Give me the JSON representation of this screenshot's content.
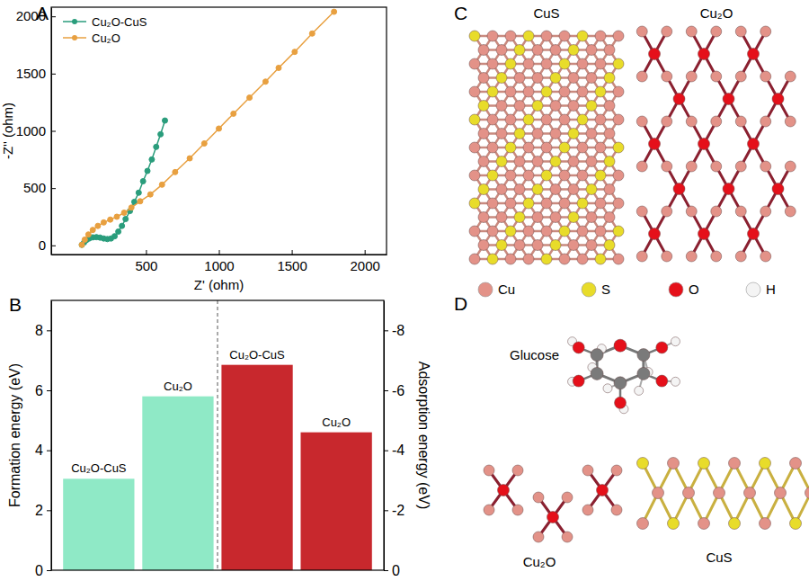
{
  "chart_data": [
    {
      "type": "line",
      "xlabel": "Z' (ohm)",
      "ylabel": "-Z'' (ohm)",
      "xlim": [
        -150,
        2150
      ],
      "ylim": [
        -80,
        2080
      ],
      "xticks": [
        500,
        1000,
        1500,
        2000
      ],
      "yticks": [
        0,
        500,
        1000,
        1500,
        2000
      ],
      "legend": "upper left",
      "marker": "circle",
      "series": [
        {
          "name": "Cu₂O-CuS",
          "color": "#2a9d7c",
          "x": [
            60,
            75,
            90,
            110,
            135,
            160,
            185,
            210,
            235,
            260,
            285,
            310,
            335,
            360,
            390,
            420,
            450,
            480,
            510,
            540,
            570,
            600,
            630
          ],
          "values": [
            5,
            25,
            45,
            60,
            70,
            72,
            68,
            60,
            55,
            60,
            80,
            120,
            170,
            230,
            300,
            380,
            460,
            560,
            650,
            750,
            860,
            970,
            1090
          ]
        },
        {
          "name": "Cu₂O",
          "color": "#e8a040",
          "x": [
            60,
            80,
            105,
            135,
            170,
            210,
            255,
            300,
            350,
            400,
            460,
            530,
            610,
            700,
            800,
            900,
            1000,
            1100,
            1210,
            1320,
            1410,
            1520,
            1640,
            1790
          ],
          "values": [
            5,
            50,
            95,
            135,
            170,
            200,
            225,
            250,
            285,
            330,
            385,
            445,
            530,
            640,
            760,
            890,
            1020,
            1150,
            1290,
            1430,
            1550,
            1690,
            1850,
            2040
          ]
        }
      ]
    },
    {
      "type": "bar",
      "categories": [
        "Cu₂O-CuS",
        "Cu₂O"
      ],
      "ylabel": "Formation energy (eV)",
      "y2label": "Adsorption energy (eV)",
      "ylim": [
        0,
        9
      ],
      "yticks": [
        0,
        2,
        4,
        6,
        8
      ],
      "y2lim": [
        0,
        -9
      ],
      "y2ticks": [
        0,
        -2,
        -4,
        -6,
        -8
      ],
      "tick_labels": "y",
      "series": [
        {
          "color": "#8fe9c6",
          "values": [
            3.05,
            5.8
          ]
        },
        {
          "color": "#c8282d",
          "values": [
            -6.85,
            -4.6
          ],
          "axis": "y2"
        }
      ]
    }
  ],
  "panel_labels": [
    "A",
    "B",
    "C",
    "D"
  ],
  "structures": {
    "titles": [
      "CuS",
      "Cu₂O"
    ],
    "legend": [
      {
        "label": "Cu",
        "color": "#e39288"
      },
      {
        "label": "S",
        "color": "#e8dc2a"
      },
      {
        "label": "O",
        "color": "#e5101a"
      },
      {
        "label": "H",
        "color": "#f4f4f4"
      }
    ]
  },
  "adsorption_model": {
    "labels": [
      "Glucose",
      "Cu₂O",
      "CuS"
    ]
  }
}
